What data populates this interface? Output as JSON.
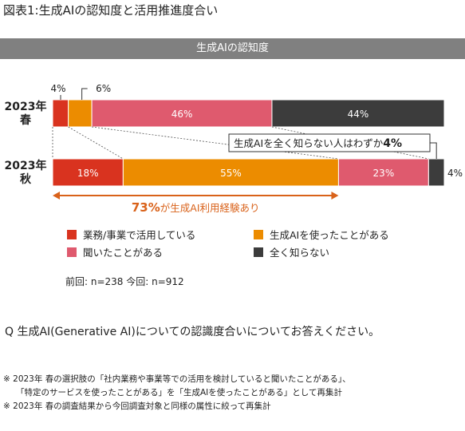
{
  "figure_title": "図表1:生成AIの認知度と活用推進度合い",
  "banner_title": "生成AIの認知度",
  "chart_data": {
    "type": "bar",
    "orientation": "horizontal-stacked-100",
    "categories": [
      {
        "label_year": "2023年",
        "label_season": "春"
      },
      {
        "label_year": "2023年",
        "label_season": "秋"
      }
    ],
    "series": [
      {
        "name": "業務/事業で活用している",
        "color": "#d9331f",
        "values": [
          4,
          18
        ],
        "labels": [
          "4%",
          "18%"
        ]
      },
      {
        "name": "生成AIを使ったことがある",
        "color": "#ec8c00",
        "values": [
          6,
          55
        ],
        "labels": [
          "6%",
          "55%"
        ]
      },
      {
        "name": "聞いたことがある",
        "color": "#df5a6e",
        "values": [
          46,
          23
        ],
        "labels": [
          "46%",
          "23%"
        ]
      },
      {
        "name": "全く知らない",
        "color": "#3c3c3c",
        "values": [
          44,
          4
        ],
        "labels": [
          "44%",
          "4%"
        ]
      }
    ],
    "xlim": [
      0,
      100
    ],
    "annotations": {
      "unaware_callout": {
        "text": "生成AIを全く知らない人はわずか",
        "value": "4%"
      },
      "experience_callout": {
        "value": "73%",
        "text": "が生成AI利用経験あり"
      }
    },
    "legend_position": "bottom"
  },
  "sample_sizes": "前回: n=238 今回: n=912",
  "question": "Q 生成AI(Generative AI)についての認識度合いについてお答えください。",
  "notes": [
    "※ 2023年 春の選択肢の「社内業務や事業等での活用を検討していると聞いたことがある」、",
    "「特定のサービスを使ったことがある」を「生成AIを使ったことがある」として再集計",
    "※ 2023年 春の調査結果から今回調査対象と同様の属性に絞って再集計"
  ],
  "colors": {
    "banner_bg": "#808080",
    "callout_orange": "#d9621a"
  }
}
